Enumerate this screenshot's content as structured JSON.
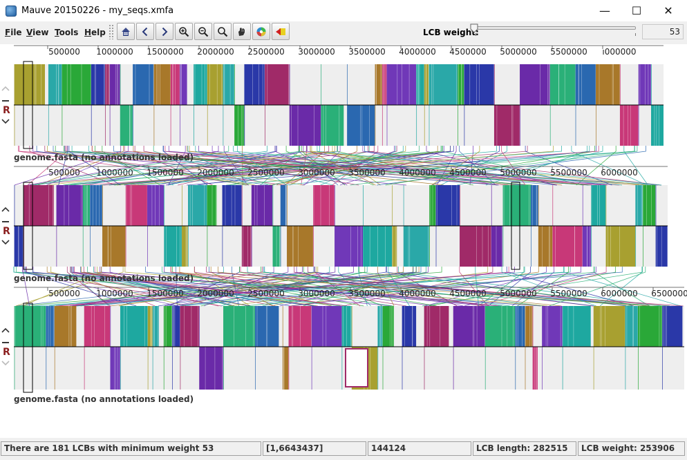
{
  "window": {
    "title": "Mauve 20150226 - my_seqs.xmfa",
    "minimize_glyph": "—",
    "maximize_glyph": "☐",
    "close_glyph": "✕"
  },
  "menu": {
    "items": [
      {
        "label": "File",
        "mnemonic": "F",
        "rest": "ile"
      },
      {
        "label": "View",
        "mnemonic": "V",
        "rest": "iew"
      },
      {
        "label": "Tools",
        "mnemonic": "T",
        "rest": "ools"
      },
      {
        "label": "Help",
        "mnemonic": "H",
        "rest": "elp"
      }
    ]
  },
  "toolbar": {
    "buttons": [
      {
        "icon": "home-icon"
      },
      {
        "icon": "chevron-left-icon"
      },
      {
        "icon": "chevron-right-icon"
      },
      {
        "icon": "zoom-in-icon"
      },
      {
        "icon": "zoom-out-icon"
      },
      {
        "icon": "zoom-magnifier-icon"
      },
      {
        "icon": "hand-pan-icon"
      },
      {
        "icon": "color-wheel-icon"
      },
      {
        "icon": "arrow-highlight-icon"
      }
    ],
    "lcb_weight_label": "LCB weight:",
    "lcb_weight_value": "53",
    "slider_fraction": 0.0
  },
  "panels": [
    {
      "genome_label": "genome.fasta (no annotations loaded)",
      "ticks": [
        "500000",
        "1000000",
        "1500000",
        "2000000",
        "2500000",
        "3000000",
        "3500000",
        "4000000",
        "4500000",
        "5000000",
        "5500000",
        "ı000000"
      ],
      "reverse_label": "R"
    },
    {
      "genome_label": "genome.fasta (no annotations loaded)",
      "ticks": [
        "500000",
        "1000000",
        "1500000",
        "2000000",
        "2500000",
        "3000000",
        "3500000",
        "4000000",
        "4500000",
        "5000000",
        "5500000",
        "6000000"
      ],
      "reverse_label": "R"
    },
    {
      "genome_label": "genome.fasta (no annotations loaded)",
      "ticks": [
        "500000",
        "1000000",
        "1500000",
        "2000000",
        "2500000",
        "3000000",
        "3500000",
        "4000000",
        "4500000",
        "5000000",
        "5500000",
        "6000000",
        "6500000"
      ],
      "reverse_label": "R"
    }
  ],
  "lcb_colors": [
    "#a8a030",
    "#2aa8a8",
    "#2aa838",
    "#2a38a8",
    "#a02a68",
    "#6a2aa8",
    "#2ab078",
    "#2a68b0",
    "#a8782a",
    "#c83878",
    "#7038b8",
    "#1ea8a0"
  ],
  "status": {
    "summary": "There are 181 LCBs with minimum weight 53",
    "range": "[1,6643437]",
    "position": "144124",
    "lcb_length": "LCB length: 282515",
    "lcb_weight": "LCB weight: 253906"
  }
}
